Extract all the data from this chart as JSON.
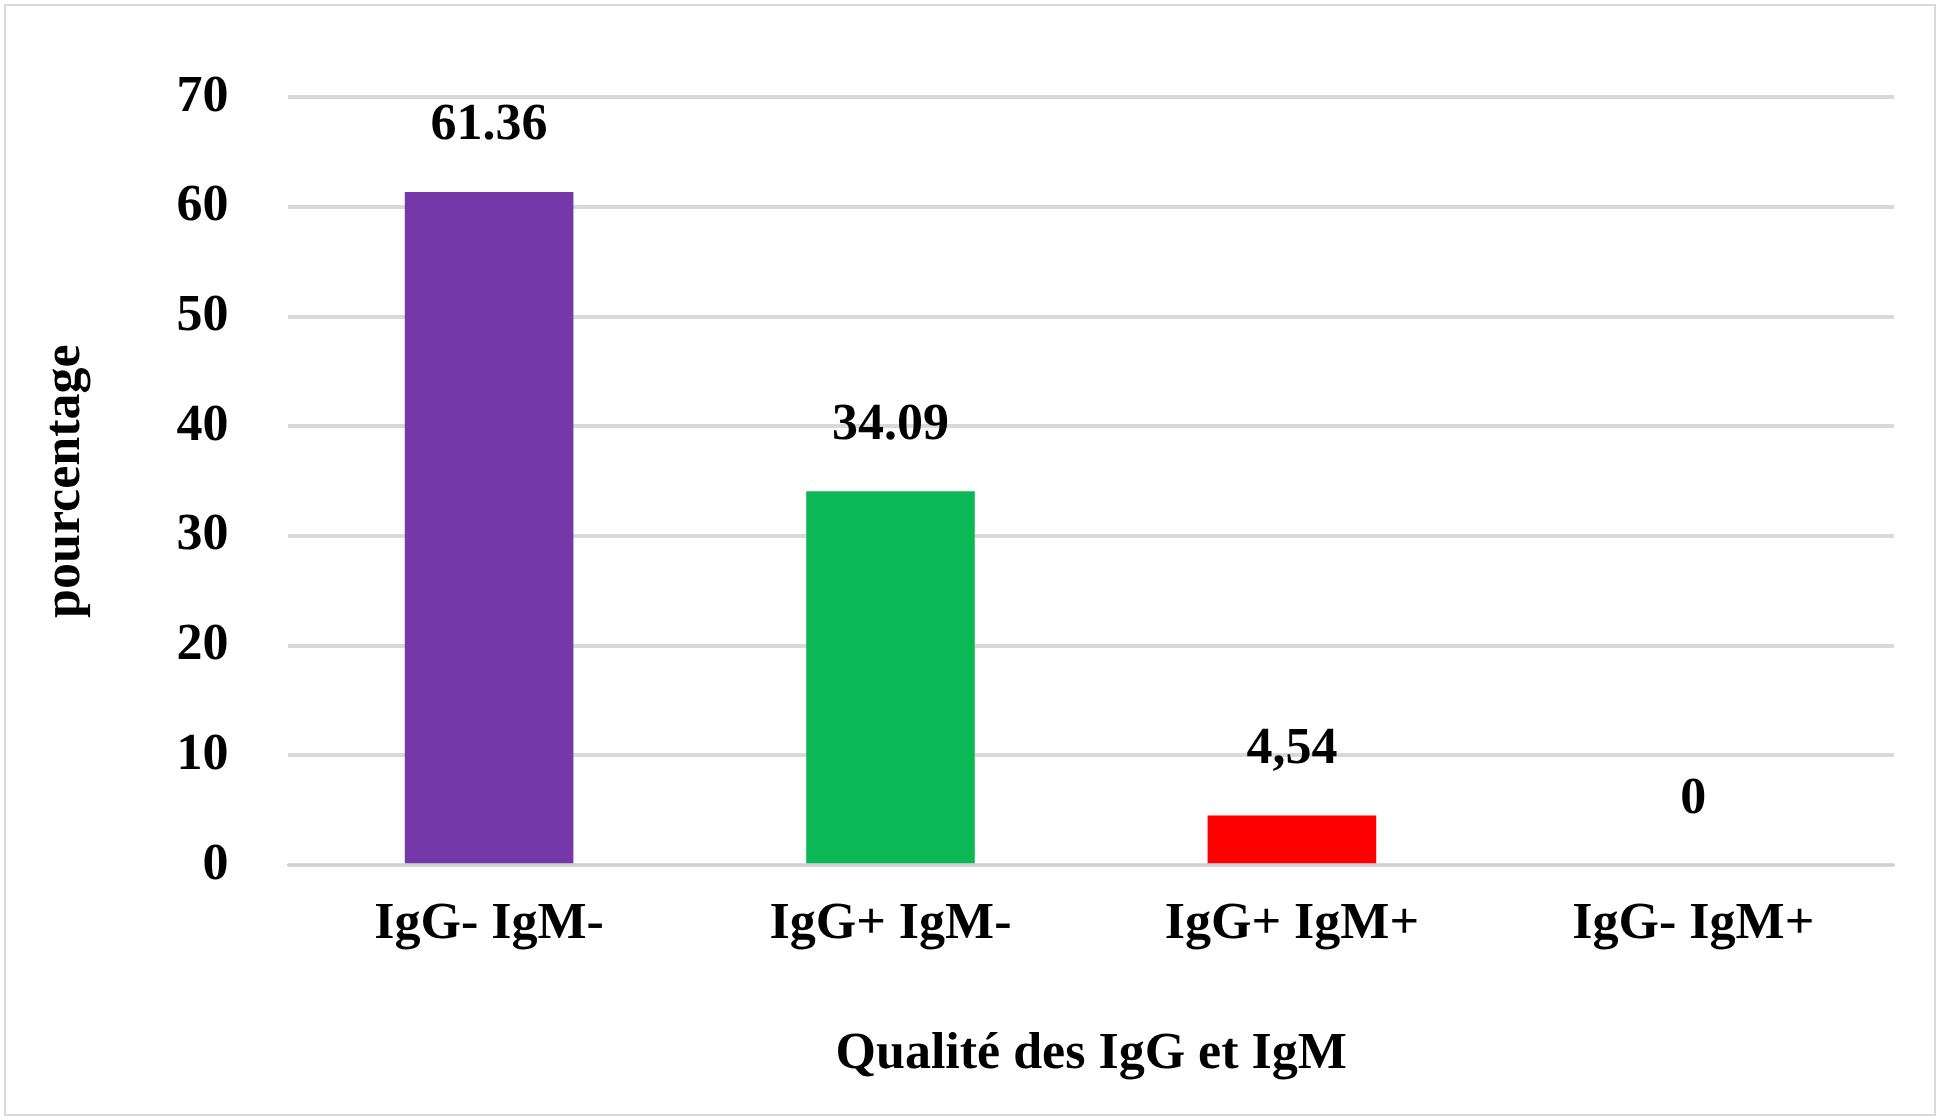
{
  "chart_data": {
    "type": "bar",
    "xlabel": "Qualité des IgG et IgM",
    "ylabel": "pourcentage",
    "categories": [
      "IgG- IgM-",
      "IgG+ IgM-",
      "IgG+ IgM+",
      "IgG- IgM+"
    ],
    "values": [
      61.36,
      34.09,
      4.54,
      0
    ],
    "colors": [
      "#7538a8",
      "#0cb856",
      "#ff0000",
      "#7f7f7f"
    ],
    "value_labels": [
      "61.36",
      "34.09",
      "4,54",
      "0"
    ],
    "ylim": [
      0,
      70
    ],
    "yticks": [
      0,
      10,
      20,
      30,
      40,
      50,
      60,
      70
    ],
    "grid": "y",
    "legend": false
  }
}
